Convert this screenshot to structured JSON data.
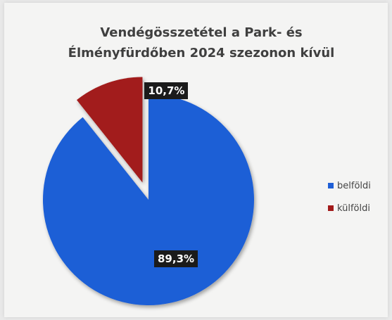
{
  "chart_data": {
    "type": "pie",
    "title": [
      "Vendégösszetétel a Park- és",
      "Élményfürdőben 2024 szezonon kívül"
    ],
    "categories": [
      "belföldi",
      "külföldi"
    ],
    "values": [
      89.3,
      10.7
    ],
    "data_labels": [
      "89,3%",
      "10,7%"
    ],
    "colors": [
      "#1f5fd6",
      "#a21a1a"
    ],
    "exploded": [
      "külföldi"
    ],
    "legend_position": "right"
  }
}
